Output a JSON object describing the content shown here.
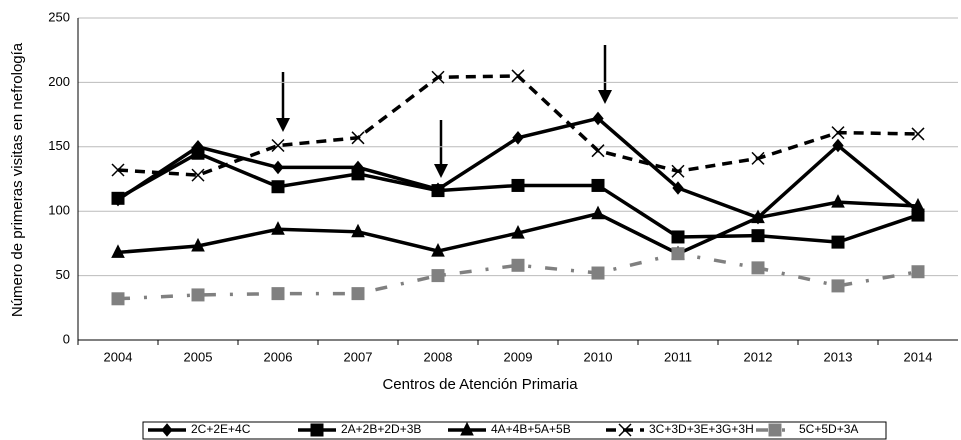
{
  "chart_data": {
    "type": "line",
    "x_label": "Centros de Atención Primaria",
    "y_label": "Número de primeras visitas en nefrología",
    "categories": [
      "2004",
      "2005",
      "2006",
      "2007",
      "2008",
      "2009",
      "2010",
      "2011",
      "2012",
      "2013",
      "2014"
    ],
    "ylim": [
      0,
      250
    ],
    "yticks": [
      0,
      50,
      100,
      150,
      200,
      250
    ],
    "grid": true,
    "series": [
      {
        "name": "2C+2E+4C",
        "color": "#000000",
        "line_style": "solid",
        "marker": "diamond",
        "values": [
          109,
          150,
          134,
          134,
          117,
          157,
          172,
          118,
          95,
          151,
          100
        ]
      },
      {
        "name": "2A+2B+2D+3B",
        "color": "#000000",
        "line_style": "solid",
        "marker": "square",
        "values": [
          110,
          145,
          119,
          129,
          116,
          120,
          120,
          80,
          81,
          76,
          97
        ]
      },
      {
        "name": "4A+4B+5A+5B",
        "color": "#000000",
        "line_style": "solid",
        "marker": "triangle",
        "values": [
          68,
          73,
          86,
          84,
          69,
          83,
          98,
          67,
          95,
          107,
          104
        ]
      },
      {
        "name": "3C+3D+3E+3G+3H",
        "color": "#000000",
        "line_style": "dashed",
        "marker": "x",
        "values": [
          132,
          128,
          151,
          157,
          204,
          205,
          147,
          131,
          141,
          161,
          160
        ]
      },
      {
        "name": "5C+5D+3A",
        "color": "#808080",
        "line_style": "dashdot",
        "marker": "square",
        "values": [
          32,
          35,
          36,
          36,
          50,
          58,
          52,
          67,
          56,
          42,
          53
        ]
      }
    ]
  }
}
